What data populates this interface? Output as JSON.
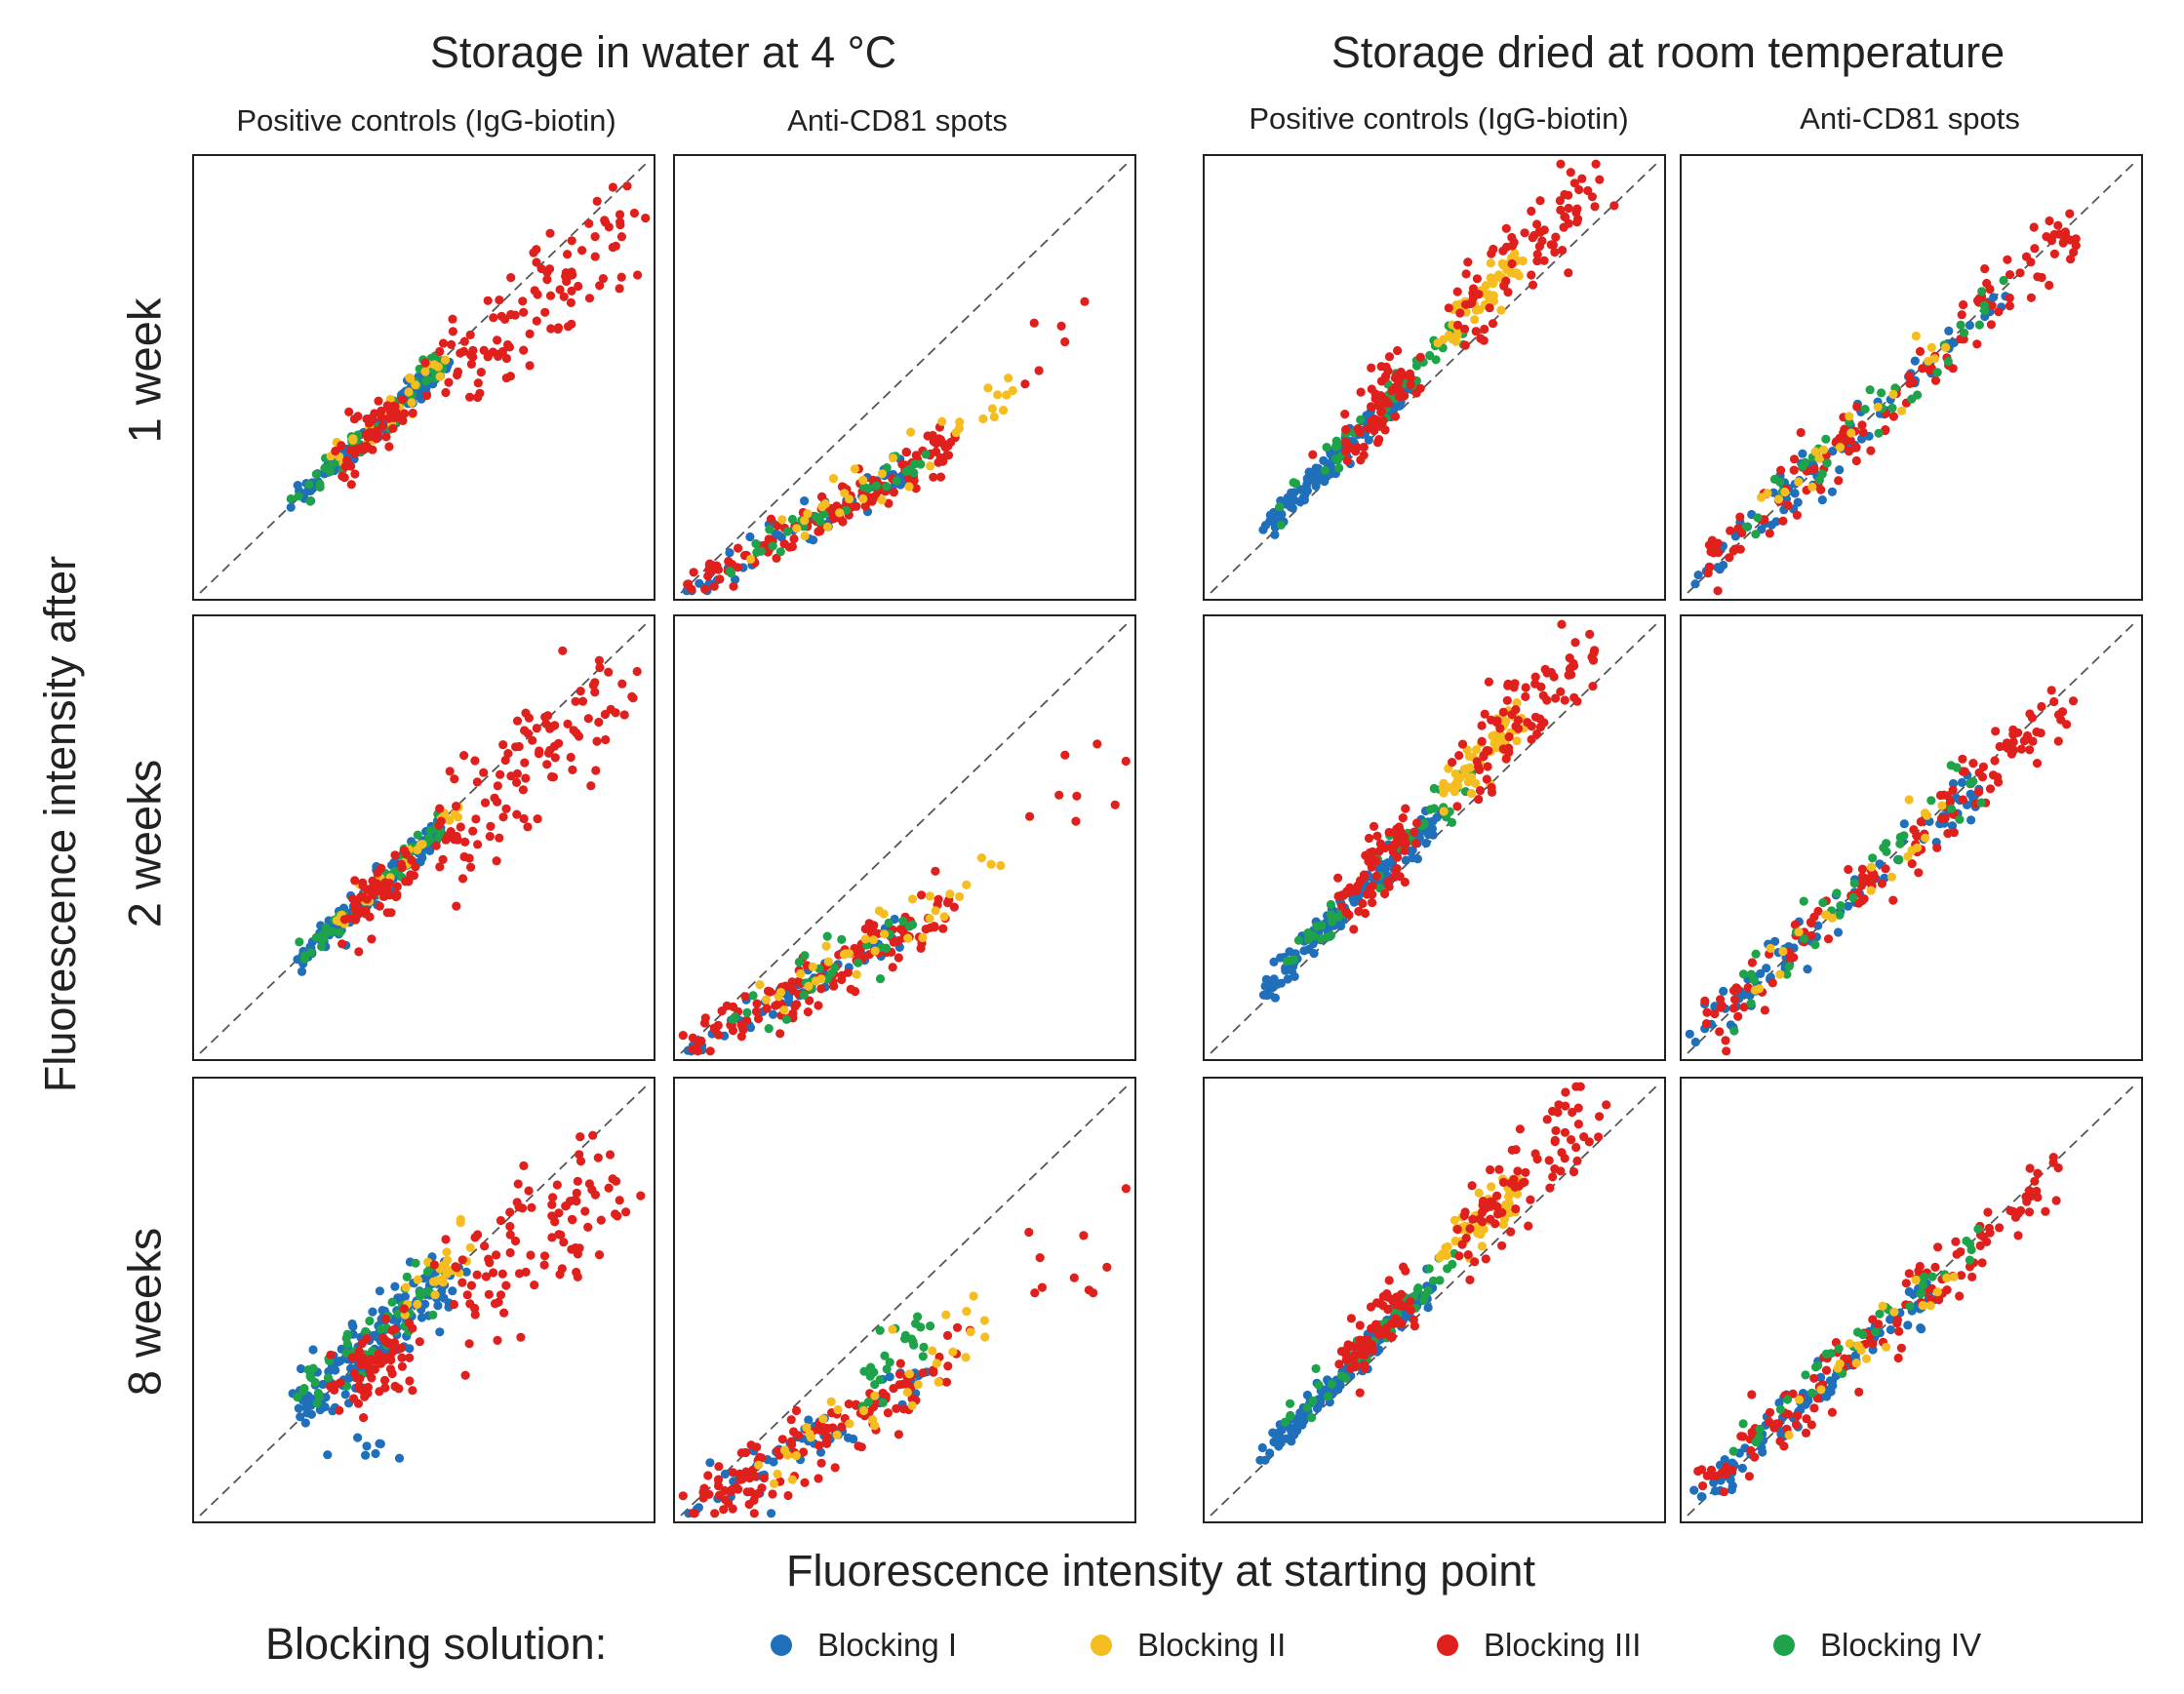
{
  "group_titles": [
    "Storage in water at 4 °C",
    "Storage dried at room temperature"
  ],
  "column_titles": [
    "Positive controls (IgG-biotin)",
    "Anti-CD81 spots",
    "Positive controls (IgG-biotin)",
    "Anti-CD81 spots"
  ],
  "row_labels": [
    "1 week",
    "2 weeks",
    "8 weeks"
  ],
  "y_axis_label": "Fluorescence intensity after",
  "x_axis_label": "Fluorescence intensity at starting point",
  "legend": {
    "title": "Blocking solution:",
    "items": [
      {
        "label": "Blocking I",
        "color": "#1f6fba"
      },
      {
        "label": "Blocking II",
        "color": "#f5bd1f"
      },
      {
        "label": "Blocking III",
        "color": "#e0201c"
      },
      {
        "label": "Blocking IV",
        "color": "#1fa34a"
      }
    ]
  },
  "chart_data": {
    "type": "scatter",
    "description_axes": "normalized intensity 0-1 (no tick labels shown); dashed line is y = x",
    "xlim": [
      0,
      1
    ],
    "ylim": [
      0,
      1
    ],
    "grid": false,
    "series_names": [
      "Blocking I",
      "Blocking II",
      "Blocking III",
      "Blocking IV"
    ],
    "series_colors": [
      "#1f6fba",
      "#f5bd1f",
      "#e0201c",
      "#1fa34a"
    ],
    "panels": [
      {
        "row": "1 week",
        "column": "Positive controls (IgG-biotin)",
        "storage": "water 4 °C",
        "clusters": [
          {
            "series": 0,
            "x": [
              0.22,
              0.55
            ],
            "slope": 0.98,
            "offset": 0.0,
            "spread": 0.015,
            "n": 160
          },
          {
            "series": 3,
            "x": [
              0.2,
              0.55
            ],
            "slope": 0.99,
            "offset": 0.005,
            "spread": 0.015,
            "n": 50
          },
          {
            "series": 1,
            "x": [
              0.3,
              0.55
            ],
            "slope": 1.0,
            "offset": 0.0,
            "spread": 0.015,
            "n": 30
          },
          {
            "series": 2,
            "x": [
              0.32,
              0.45
            ],
            "slope": 0.95,
            "offset": 0.0,
            "spread": 0.03,
            "n": 60
          },
          {
            "series": 2,
            "x": [
              0.55,
              0.95
            ],
            "slope": 0.75,
            "offset": 0.12,
            "spread": 0.06,
            "n": 90
          },
          {
            "series": 2,
            "x": [
              0.5,
              0.75
            ],
            "slope": 0.4,
            "offset": 0.25,
            "spread": 0.05,
            "n": 15
          }
        ]
      },
      {
        "row": "1 week",
        "column": "Anti-CD81 spots",
        "storage": "water 4 °C",
        "clusters": [
          {
            "series": 0,
            "x": [
              0.01,
              0.5
            ],
            "slope": 0.55,
            "offset": 0.0,
            "spread": 0.02,
            "n": 60
          },
          {
            "series": 2,
            "x": [
              0.01,
              0.62
            ],
            "slope": 0.56,
            "offset": 0.0,
            "spread": 0.025,
            "n": 130
          },
          {
            "series": 3,
            "x": [
              0.05,
              0.55
            ],
            "slope": 0.58,
            "offset": 0.0,
            "spread": 0.02,
            "n": 30
          },
          {
            "series": 1,
            "x": [
              0.15,
              0.75
            ],
            "slope": 0.6,
            "offset": 0.0,
            "spread": 0.03,
            "n": 35
          },
          {
            "series": 2,
            "x": [
              0.75,
              0.95
            ],
            "slope": 0.55,
            "offset": 0.1,
            "spread": 0.07,
            "n": 6
          }
        ]
      },
      {
        "row": "1 week",
        "column": "Positive controls (IgG-biotin)",
        "storage": "dried room temperature",
        "clusters": [
          {
            "series": 0,
            "x": [
              0.12,
              0.45
            ],
            "slope": 1.05,
            "offset": 0.02,
            "spread": 0.015,
            "n": 140
          },
          {
            "series": 3,
            "x": [
              0.15,
              0.58
            ],
            "slope": 1.05,
            "offset": 0.03,
            "spread": 0.02,
            "n": 50
          },
          {
            "series": 2,
            "x": [
              0.3,
              0.45
            ],
            "slope": 1.1,
            "offset": 0.02,
            "spread": 0.04,
            "n": 70
          },
          {
            "series": 1,
            "x": [
              0.52,
              0.68
            ],
            "slope": 1.05,
            "offset": 0.05,
            "spread": 0.025,
            "n": 60
          },
          {
            "series": 2,
            "x": [
              0.55,
              0.85
            ],
            "slope": 1.05,
            "offset": 0.05,
            "spread": 0.05,
            "n": 80
          }
        ]
      },
      {
        "row": "1 week",
        "column": "Anti-CD81 spots",
        "storage": "dried room temperature",
        "clusters": [
          {
            "series": 0,
            "x": [
              0.01,
              0.7
            ],
            "slope": 0.95,
            "offset": 0.02,
            "spread": 0.025,
            "n": 90
          },
          {
            "series": 2,
            "x": [
              0.03,
              0.88
            ],
            "slope": 0.95,
            "offset": 0.02,
            "spread": 0.035,
            "n": 130
          },
          {
            "series": 3,
            "x": [
              0.1,
              0.7
            ],
            "slope": 0.97,
            "offset": 0.03,
            "spread": 0.03,
            "n": 35
          },
          {
            "series": 1,
            "x": [
              0.15,
              0.6
            ],
            "slope": 0.95,
            "offset": 0.02,
            "spread": 0.03,
            "n": 20
          }
        ]
      },
      {
        "row": "2 weeks",
        "column": "Positive controls (IgG-biotin)",
        "storage": "water 4 °C",
        "clusters": [
          {
            "series": 0,
            "x": [
              0.22,
              0.55
            ],
            "slope": 0.97,
            "offset": 0.0,
            "spread": 0.015,
            "n": 150
          },
          {
            "series": 3,
            "x": [
              0.2,
              0.55
            ],
            "slope": 0.98,
            "offset": 0.005,
            "spread": 0.015,
            "n": 50
          },
          {
            "series": 1,
            "x": [
              0.3,
              0.58
            ],
            "slope": 0.98,
            "offset": 0.0,
            "spread": 0.015,
            "n": 30
          },
          {
            "series": 2,
            "x": [
              0.32,
              0.48
            ],
            "slope": 0.93,
            "offset": 0.0,
            "spread": 0.03,
            "n": 60
          },
          {
            "series": 2,
            "x": [
              0.55,
              0.95
            ],
            "slope": 0.75,
            "offset": 0.12,
            "spread": 0.06,
            "n": 90
          },
          {
            "series": 2,
            "x": [
              0.5,
              0.75
            ],
            "slope": 0.45,
            "offset": 0.23,
            "spread": 0.05,
            "n": 18
          }
        ]
      },
      {
        "row": "2 weeks",
        "column": "Anti-CD81 spots",
        "storage": "water 4 °C",
        "clusters": [
          {
            "series": 0,
            "x": [
              0.01,
              0.5
            ],
            "slope": 0.56,
            "offset": 0.0,
            "spread": 0.02,
            "n": 60
          },
          {
            "series": 2,
            "x": [
              0.01,
              0.6
            ],
            "slope": 0.56,
            "offset": 0.0,
            "spread": 0.03,
            "n": 130
          },
          {
            "series": 3,
            "x": [
              0.05,
              0.55
            ],
            "slope": 0.6,
            "offset": 0.0,
            "spread": 0.03,
            "n": 30
          },
          {
            "series": 1,
            "x": [
              0.15,
              0.75
            ],
            "slope": 0.62,
            "offset": 0.0,
            "spread": 0.03,
            "n": 35
          },
          {
            "series": 2,
            "x": [
              0.75,
              0.97
            ],
            "slope": 0.55,
            "offset": 0.1,
            "spread": 0.08,
            "n": 8
          }
        ]
      },
      {
        "row": "2 weeks",
        "column": "Positive controls (IgG-biotin)",
        "storage": "dried room temperature",
        "clusters": [
          {
            "series": 0,
            "x": [
              0.12,
              0.52
            ],
            "slope": 1.05,
            "offset": 0.02,
            "spread": 0.015,
            "n": 150
          },
          {
            "series": 3,
            "x": [
              0.15,
              0.58
            ],
            "slope": 1.05,
            "offset": 0.03,
            "spread": 0.02,
            "n": 50
          },
          {
            "series": 2,
            "x": [
              0.3,
              0.45
            ],
            "slope": 1.1,
            "offset": 0.02,
            "spread": 0.04,
            "n": 70
          },
          {
            "series": 1,
            "x": [
              0.52,
              0.7
            ],
            "slope": 1.05,
            "offset": 0.05,
            "spread": 0.025,
            "n": 60
          },
          {
            "series": 2,
            "x": [
              0.55,
              0.85
            ],
            "slope": 1.05,
            "offset": 0.05,
            "spread": 0.05,
            "n": 80
          }
        ]
      },
      {
        "row": "2 weeks",
        "column": "Anti-CD81 spots",
        "storage": "dried room temperature",
        "clusters": [
          {
            "series": 0,
            "x": [
              0.01,
              0.65
            ],
            "slope": 0.93,
            "offset": 0.02,
            "spread": 0.025,
            "n": 90
          },
          {
            "series": 2,
            "x": [
              0.03,
              0.85
            ],
            "slope": 0.93,
            "offset": 0.02,
            "spread": 0.035,
            "n": 130
          },
          {
            "series": 3,
            "x": [
              0.1,
              0.65
            ],
            "slope": 0.97,
            "offset": 0.03,
            "spread": 0.03,
            "n": 35
          },
          {
            "series": 1,
            "x": [
              0.15,
              0.6
            ],
            "slope": 0.93,
            "offset": 0.02,
            "spread": 0.03,
            "n": 20
          }
        ]
      },
      {
        "row": "8 weeks",
        "column": "Positive controls (IgG-biotin)",
        "storage": "water 4 °C",
        "clusters": [
          {
            "series": 0,
            "x": [
              0.2,
              0.55
            ],
            "slope": 0.98,
            "offset": 0.02,
            "spread": 0.04,
            "n": 170
          },
          {
            "series": 3,
            "x": [
              0.2,
              0.55
            ],
            "slope": 1.0,
            "offset": 0.03,
            "spread": 0.03,
            "n": 50
          },
          {
            "series": 1,
            "x": [
              0.45,
              0.6
            ],
            "slope": 1.0,
            "offset": 0.04,
            "spread": 0.03,
            "n": 25
          },
          {
            "series": 2,
            "x": [
              0.32,
              0.48
            ],
            "slope": 0.9,
            "offset": 0.0,
            "spread": 0.05,
            "n": 70
          },
          {
            "series": 2,
            "x": [
              0.55,
              0.95
            ],
            "slope": 0.7,
            "offset": 0.12,
            "spread": 0.08,
            "n": 100
          },
          {
            "series": 0,
            "x": [
              0.3,
              0.45
            ],
            "slope": 0.1,
            "offset": 0.12,
            "spread": 0.02,
            "n": 8
          }
        ]
      },
      {
        "row": "8 weeks",
        "column": "Anti-CD81 spots",
        "storage": "water 4 °C",
        "clusters": [
          {
            "series": 0,
            "x": [
              0.01,
              0.55
            ],
            "slope": 0.6,
            "offset": 0.0,
            "spread": 0.03,
            "n": 60
          },
          {
            "series": 2,
            "x": [
              0.01,
              0.62
            ],
            "slope": 0.58,
            "offset": 0.0,
            "spread": 0.04,
            "n": 130
          },
          {
            "series": 3,
            "x": [
              0.4,
              0.55
            ],
            "slope": 0.75,
            "offset": 0.0,
            "spread": 0.03,
            "n": 25
          },
          {
            "series": 1,
            "x": [
              0.15,
              0.68
            ],
            "slope": 0.65,
            "offset": 0.0,
            "spread": 0.04,
            "n": 35
          },
          {
            "series": 2,
            "x": [
              0.7,
              0.95
            ],
            "slope": 0.5,
            "offset": 0.12,
            "spread": 0.08,
            "n": 10
          }
        ]
      },
      {
        "row": "8 weeks",
        "column": "Positive controls (IgG-biotin)",
        "storage": "dried room temperature",
        "clusters": [
          {
            "series": 0,
            "x": [
              0.12,
              0.5
            ],
            "slope": 1.05,
            "offset": 0.02,
            "spread": 0.015,
            "n": 160
          },
          {
            "series": 3,
            "x": [
              0.15,
              0.55
            ],
            "slope": 1.05,
            "offset": 0.03,
            "spread": 0.02,
            "n": 50
          },
          {
            "series": 2,
            "x": [
              0.3,
              0.45
            ],
            "slope": 1.1,
            "offset": 0.02,
            "spread": 0.04,
            "n": 70
          },
          {
            "series": 1,
            "x": [
              0.52,
              0.68
            ],
            "slope": 1.05,
            "offset": 0.05,
            "spread": 0.025,
            "n": 60
          },
          {
            "series": 2,
            "x": [
              0.55,
              0.85
            ],
            "slope": 1.05,
            "offset": 0.05,
            "spread": 0.05,
            "n": 80
          }
        ]
      },
      {
        "row": "8 weeks",
        "column": "Anti-CD81 spots",
        "storage": "dried room temperature",
        "clusters": [
          {
            "series": 0,
            "x": [
              0.01,
              0.55
            ],
            "slope": 0.93,
            "offset": 0.02,
            "spread": 0.025,
            "n": 90
          },
          {
            "series": 2,
            "x": [
              0.03,
              0.85
            ],
            "slope": 0.93,
            "offset": 0.03,
            "spread": 0.035,
            "n": 130
          },
          {
            "series": 3,
            "x": [
              0.1,
              0.65
            ],
            "slope": 0.97,
            "offset": 0.03,
            "spread": 0.03,
            "n": 35
          },
          {
            "series": 1,
            "x": [
              0.15,
              0.6
            ],
            "slope": 0.93,
            "offset": 0.02,
            "spread": 0.03,
            "n": 20
          }
        ]
      }
    ]
  }
}
